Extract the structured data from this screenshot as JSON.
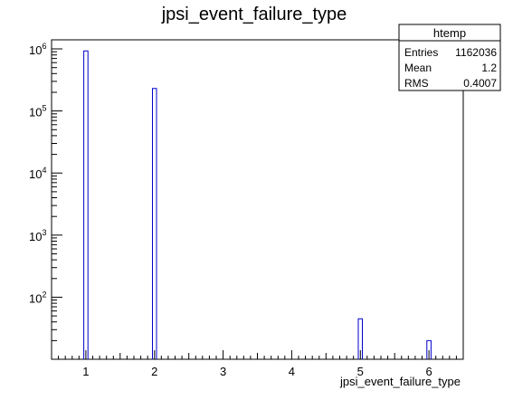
{
  "chart_data": {
    "type": "bar",
    "title": "jpsi_event_failure_type",
    "xlabel": "jpsi_event_failure_type",
    "ylabel": "",
    "xlim": [
      0.5,
      6.5
    ],
    "ylog": true,
    "ylim": [
      10,
      1400000
    ],
    "bin_width": 0.06,
    "x_ticks": [
      "1",
      "2",
      "3",
      "4",
      "5",
      "6"
    ],
    "y_ticks": [
      {
        "base": "10",
        "exp": "2",
        "value": 100
      },
      {
        "base": "10",
        "exp": "3",
        "value": 1000
      },
      {
        "base": "10",
        "exp": "4",
        "value": 10000
      },
      {
        "base": "10",
        "exp": "5",
        "value": 100000
      },
      {
        "base": "10",
        "exp": "6",
        "value": 1000000
      }
    ],
    "bins": [
      {
        "x": 1,
        "value": 930000
      },
      {
        "x": 2,
        "value": 230000
      },
      {
        "x": 5,
        "value": 45
      },
      {
        "x": 6,
        "value": 20
      }
    ],
    "line_color": "#0000cc",
    "stats": {
      "title": "htemp",
      "rows": [
        {
          "label": "Entries",
          "value": "1162036"
        },
        {
          "label": "Mean",
          "value": "1.2"
        },
        {
          "label": "RMS",
          "value": "0.4007"
        }
      ]
    }
  }
}
